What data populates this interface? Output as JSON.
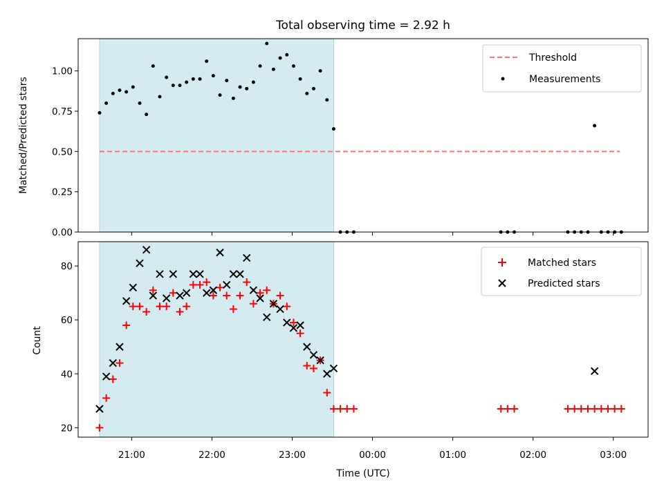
{
  "chart_data": [
    {
      "type": "scatter",
      "title": "Total observing time = 2.92 h",
      "xlabel": "",
      "ylabel": "Matched/Predicted stars",
      "ylim": [
        0.0,
        1.2
      ],
      "yticks": [
        0.0,
        0.25,
        0.5,
        0.75,
        1.0
      ],
      "ytick_labels": [
        "0.00",
        "0.25",
        "0.50",
        "0.75",
        "1.00"
      ],
      "legend_position": "top-right",
      "shaded_region": {
        "x_start": "20:36",
        "x_end": "23:31",
        "color": "#d4ebf1"
      },
      "threshold": {
        "name": "Threshold",
        "value": 0.5,
        "x_start": "20:36",
        "x_end": "03:05",
        "color": "#ff6e6e"
      },
      "series": [
        {
          "name": "Measurements",
          "color": "#000000",
          "points": [
            [
              "20:36",
              0.74
            ],
            [
              "20:41",
              0.8
            ],
            [
              "20:46",
              0.86
            ],
            [
              "20:51",
              0.88
            ],
            [
              "20:56",
              0.87
            ],
            [
              "21:01",
              0.9
            ],
            [
              "21:06",
              0.8
            ],
            [
              "21:11",
              0.73
            ],
            [
              "21:16",
              1.03
            ],
            [
              "21:21",
              0.84
            ],
            [
              "21:26",
              0.96
            ],
            [
              "21:31",
              0.91
            ],
            [
              "21:36",
              0.91
            ],
            [
              "21:41",
              0.93
            ],
            [
              "21:46",
              0.95
            ],
            [
              "21:51",
              0.95
            ],
            [
              "21:56",
              1.06
            ],
            [
              "22:01",
              0.97
            ],
            [
              "22:06",
              0.85
            ],
            [
              "22:11",
              0.94
            ],
            [
              "22:16",
              0.83
            ],
            [
              "22:21",
              0.9
            ],
            [
              "22:26",
              0.89
            ],
            [
              "22:31",
              0.93
            ],
            [
              "22:36",
              1.03
            ],
            [
              "22:41",
              1.17
            ],
            [
              "22:46",
              1.01
            ],
            [
              "22:51",
              1.08
            ],
            [
              "22:56",
              1.1
            ],
            [
              "23:01",
              1.03
            ],
            [
              "23:06",
              0.95
            ],
            [
              "23:11",
              0.86
            ],
            [
              "23:16",
              0.89
            ],
            [
              "23:21",
              1.0
            ],
            [
              "23:26",
              0.82
            ],
            [
              "23:31",
              0.64
            ],
            [
              "23:36",
              0.0
            ],
            [
              "23:41",
              0.0
            ],
            [
              "23:46",
              0.0
            ],
            [
              "01:36",
              0.0
            ],
            [
              "01:41",
              0.0
            ],
            [
              "01:46",
              0.0
            ],
            [
              "02:26",
              0.0
            ],
            [
              "02:31",
              0.0
            ],
            [
              "02:36",
              0.0
            ],
            [
              "02:41",
              0.0
            ],
            [
              "02:46",
              0.66
            ],
            [
              "02:51",
              0.0
            ],
            [
              "02:56",
              0.0
            ],
            [
              "03:01",
              0.0
            ],
            [
              "03:06",
              0.0
            ]
          ]
        }
      ]
    },
    {
      "type": "scatter",
      "title": "",
      "xlabel": "Time (UTC)",
      "ylabel": "Count",
      "ylim": [
        16.5,
        89
      ],
      "yticks": [
        20,
        40,
        60,
        80
      ],
      "ytick_labels": [
        "20",
        "40",
        "60",
        "80"
      ],
      "xtick_labels": [
        "21:00",
        "22:00",
        "23:00",
        "00:00",
        "01:00",
        "02:00",
        "03:00"
      ],
      "x_start": "20:20",
      "x_end": "03:26",
      "legend_position": "top-right",
      "shaded_region": {
        "x_start": "20:36",
        "x_end": "23:31",
        "color": "#d4ebf1"
      },
      "series": [
        {
          "name": "Matched stars",
          "marker": "plus",
          "color": "#ff0000",
          "points": [
            [
              "20:36",
              20
            ],
            [
              "20:41",
              31
            ],
            [
              "20:46",
              38
            ],
            [
              "20:51",
              44
            ],
            [
              "20:56",
              58
            ],
            [
              "21:01",
              65
            ],
            [
              "21:06",
              65
            ],
            [
              "21:11",
              63
            ],
            [
              "21:16",
              71
            ],
            [
              "21:21",
              65
            ],
            [
              "21:26",
              65
            ],
            [
              "21:31",
              70
            ],
            [
              "21:36",
              63
            ],
            [
              "21:41",
              65
            ],
            [
              "21:46",
              73
            ],
            [
              "21:51",
              73
            ],
            [
              "21:56",
              74
            ],
            [
              "22:01",
              69
            ],
            [
              "22:06",
              72
            ],
            [
              "22:11",
              69
            ],
            [
              "22:16",
              64
            ],
            [
              "22:21",
              69
            ],
            [
              "22:26",
              74
            ],
            [
              "22:31",
              66
            ],
            [
              "22:36",
              70
            ],
            [
              "22:41",
              71
            ],
            [
              "22:46",
              66
            ],
            [
              "22:51",
              69
            ],
            [
              "22:56",
              65
            ],
            [
              "23:01",
              59
            ],
            [
              "23:06",
              55
            ],
            [
              "23:11",
              43
            ],
            [
              "23:16",
              42
            ],
            [
              "23:21",
              45
            ],
            [
              "23:26",
              33
            ],
            [
              "23:31",
              27
            ],
            [
              "23:36",
              27
            ],
            [
              "23:41",
              27
            ],
            [
              "23:46",
              27
            ],
            [
              "01:36",
              27
            ],
            [
              "01:41",
              27
            ],
            [
              "01:46",
              27
            ],
            [
              "02:26",
              27
            ],
            [
              "02:31",
              27
            ],
            [
              "02:36",
              27
            ],
            [
              "02:41",
              27
            ],
            [
              "02:46",
              27
            ],
            [
              "02:51",
              27
            ],
            [
              "02:56",
              27
            ],
            [
              "03:01",
              27
            ],
            [
              "03:06",
              27
            ]
          ]
        },
        {
          "name": "Predicted stars",
          "marker": "x",
          "color": "#000000",
          "points": [
            [
              "20:36",
              27
            ],
            [
              "20:41",
              39
            ],
            [
              "20:46",
              44
            ],
            [
              "20:51",
              50
            ],
            [
              "20:56",
              67
            ],
            [
              "21:01",
              72
            ],
            [
              "21:06",
              81
            ],
            [
              "21:11",
              86
            ],
            [
              "21:16",
              69
            ],
            [
              "21:21",
              77
            ],
            [
              "21:26",
              68
            ],
            [
              "21:31",
              77
            ],
            [
              "21:36",
              69
            ],
            [
              "21:41",
              70
            ],
            [
              "21:46",
              77
            ],
            [
              "21:51",
              77
            ],
            [
              "21:56",
              70
            ],
            [
              "22:01",
              71
            ],
            [
              "22:06",
              85
            ],
            [
              "22:11",
              73
            ],
            [
              "22:16",
              77
            ],
            [
              "22:21",
              77
            ],
            [
              "22:26",
              83
            ],
            [
              "22:31",
              71
            ],
            [
              "22:36",
              68
            ],
            [
              "22:41",
              61
            ],
            [
              "22:46",
              66
            ],
            [
              "22:51",
              64
            ],
            [
              "22:56",
              59
            ],
            [
              "23:01",
              57
            ],
            [
              "23:06",
              58
            ],
            [
              "23:11",
              50
            ],
            [
              "23:16",
              47
            ],
            [
              "23:21",
              45
            ],
            [
              "23:26",
              40
            ],
            [
              "23:31",
              42
            ],
            [
              "02:46",
              41
            ]
          ]
        }
      ]
    }
  ]
}
